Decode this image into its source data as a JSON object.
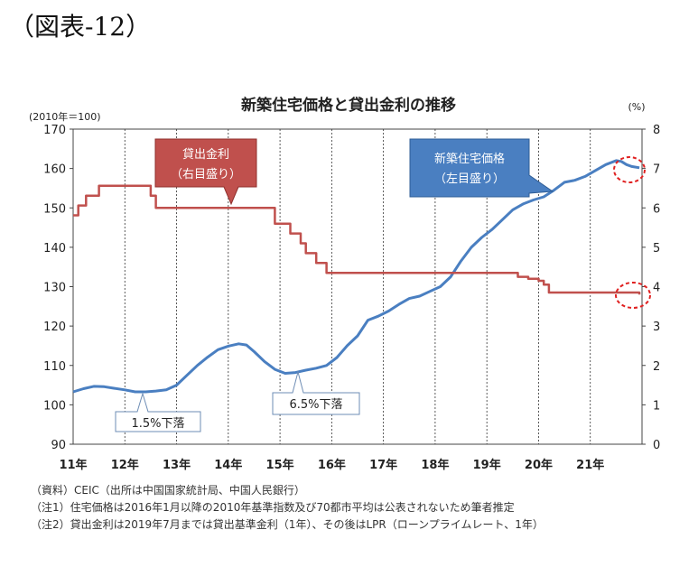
{
  "figure_label": "（図表-12）",
  "notes": [
    "（資料）CEIC（出所は中国国家統計局、中国人民銀行）",
    "（注1）住宅価格は2016年1月以降の2010年基準指数及び70都市平均は公表されないため筆者推定",
    "（注2）貸出金利は2019年7月までは貸出基準金利（1年）、その後はLPR（ローンプライムレート、1年）"
  ],
  "chart_data": {
    "type": "line",
    "title": "新築住宅価格と貸出金利の推移",
    "left_unit": "(2010年＝100)",
    "right_unit": "(%)",
    "categories": [
      "11年",
      "12年",
      "13年",
      "14年",
      "15年",
      "16年",
      "17年",
      "18年",
      "19年",
      "20年",
      "21年"
    ],
    "ylim_left": [
      90,
      170
    ],
    "ylim_right": [
      0,
      8
    ],
    "yticks_left": [
      "170",
      "160",
      "150",
      "140",
      "130",
      "120",
      "110",
      "100",
      "90"
    ],
    "yticks_right": [
      "8",
      "7",
      "6",
      "5",
      "4",
      "3",
      "2",
      "1",
      "0"
    ],
    "grid": "vertical dashed at year boundaries",
    "series": [
      {
        "name": "新築住宅価格",
        "axis": "left",
        "color": "#4a7fc1",
        "x": [
          2011.0,
          2011.2,
          2011.4,
          2011.6,
          2011.8,
          2012.0,
          2012.2,
          2012.4,
          2012.6,
          2012.8,
          2013.0,
          2013.2,
          2013.4,
          2013.6,
          2013.8,
          2014.0,
          2014.2,
          2014.35,
          2014.5,
          2014.7,
          2014.9,
          2015.1,
          2015.3,
          2015.5,
          2015.7,
          2015.9,
          2016.1,
          2016.3,
          2016.5,
          2016.7,
          2016.9,
          2017.1,
          2017.3,
          2017.5,
          2017.7,
          2017.9,
          2018.1,
          2018.3,
          2018.5,
          2018.7,
          2018.9,
          2019.1,
          2019.3,
          2019.5,
          2019.7,
          2019.9,
          2020.1,
          2020.3,
          2020.5,
          2020.7,
          2020.9,
          2021.1,
          2021.3,
          2021.5,
          2021.6,
          2021.7,
          2021.8,
          2021.95
        ],
        "values": [
          103.3,
          104.1,
          104.7,
          104.6,
          104.2,
          103.8,
          103.3,
          103.3,
          103.5,
          103.8,
          105.0,
          107.5,
          110.0,
          112.1,
          114.0,
          114.9,
          115.5,
          115.2,
          113.5,
          111.0,
          109.0,
          108.0,
          108.2,
          108.8,
          109.3,
          110.0,
          112.0,
          115.0,
          117.5,
          121.5,
          122.5,
          123.8,
          125.5,
          127.0,
          127.6,
          128.8,
          130.0,
          132.5,
          136.5,
          140.0,
          142.5,
          144.5,
          147.0,
          149.5,
          151.0,
          152.0,
          152.8,
          154.5,
          156.5,
          157.0,
          158.0,
          159.5,
          161.0,
          162.0,
          161.8,
          161.0,
          160.5,
          160.2
        ]
      },
      {
        "name": "貸出金利",
        "axis": "right",
        "color": "#c0504d",
        "x": [
          2011.0,
          2011.1,
          2011.25,
          2011.45,
          2011.5,
          2011.6,
          2011.8,
          2012.0,
          2012.2,
          2012.4,
          2012.5,
          2012.6,
          2012.8,
          2013.0,
          2013.5,
          2014.0,
          2014.5,
          2014.8,
          2014.9,
          2015.1,
          2015.2,
          2015.3,
          2015.4,
          2015.5,
          2015.6,
          2015.7,
          2015.8,
          2015.9,
          2016.0,
          2016.5,
          2017.0,
          2017.5,
          2018.0,
          2018.5,
          2019.0,
          2019.5,
          2019.6,
          2019.8,
          2020.0,
          2020.1,
          2020.2,
          2020.5,
          2021.0,
          2021.5,
          2021.95
        ],
        "values": [
          5.81,
          6.06,
          6.31,
          6.31,
          6.56,
          6.56,
          6.56,
          6.56,
          6.56,
          6.56,
          6.31,
          6.0,
          6.0,
          6.0,
          6.0,
          6.0,
          6.0,
          6.0,
          5.6,
          5.6,
          5.35,
          5.35,
          5.1,
          4.85,
          4.85,
          4.6,
          4.6,
          4.35,
          4.35,
          4.35,
          4.35,
          4.35,
          4.35,
          4.35,
          4.35,
          4.35,
          4.25,
          4.2,
          4.15,
          4.05,
          3.85,
          3.85,
          3.85,
          3.85,
          3.8
        ]
      }
    ],
    "annotations": [
      {
        "id": "rate_box",
        "text": [
          "貸出金利",
          "（右目盛り）"
        ],
        "color": "#c0504d"
      },
      {
        "id": "price_box",
        "text": [
          "新築住宅価格",
          "（左目盛り）"
        ],
        "color": "#4a7fc1"
      },
      {
        "id": "drop1",
        "text": "1.5%下落"
      },
      {
        "id": "drop2",
        "text": "6.5%下落"
      }
    ]
  }
}
